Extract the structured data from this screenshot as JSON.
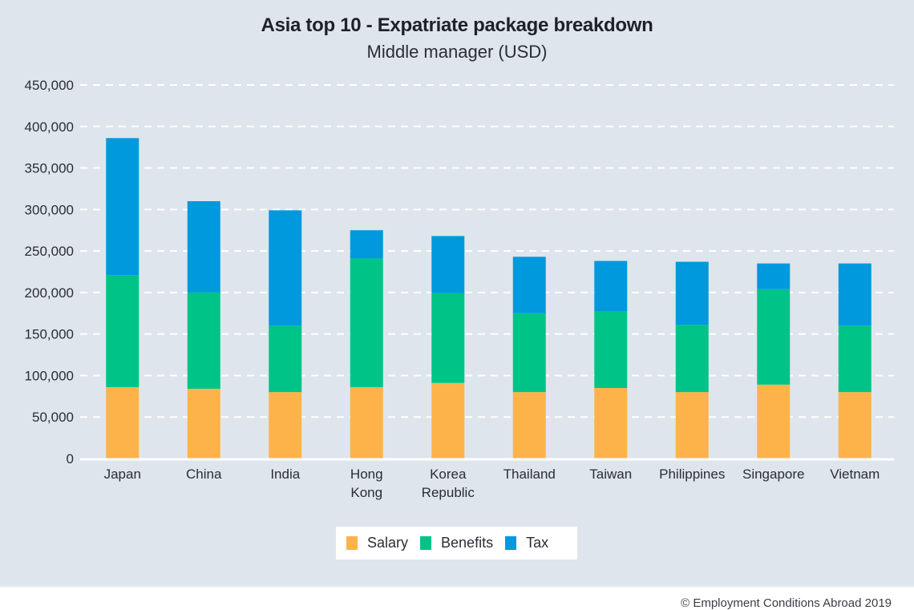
{
  "chart_data": {
    "type": "bar",
    "stacked": true,
    "title": "Asia top 10 - Expatriate package breakdown",
    "subtitle": "Middle manager (USD)",
    "xlabel": "",
    "ylabel": "",
    "ylim": [
      0,
      450000
    ],
    "yticks": [
      0,
      50000,
      100000,
      150000,
      200000,
      250000,
      300000,
      350000,
      400000,
      450000
    ],
    "ytick_labels": [
      "0",
      "50,000",
      "100,000",
      "150,000",
      "200,000",
      "250,000",
      "300,000",
      "350,000",
      "400,000",
      "450,000"
    ],
    "grid": true,
    "legend_position": "bottom",
    "categories": [
      "Japan",
      "China",
      "India",
      "Hong Kong",
      "Korea Republic",
      "Thailand",
      "Taiwan",
      "Philippines",
      "Singapore",
      "Vietnam"
    ],
    "category_lines": [
      [
        "Japan"
      ],
      [
        "China"
      ],
      [
        "India"
      ],
      [
        "Hong",
        "Kong"
      ],
      [
        "Korea",
        "Republic"
      ],
      [
        "Thailand"
      ],
      [
        "Taiwan"
      ],
      [
        "Philippines"
      ],
      [
        "Singapore"
      ],
      [
        "Vietnam"
      ]
    ],
    "series": [
      {
        "name": "Salary",
        "color": "#fdb34a",
        "values": [
          86000,
          84000,
          80000,
          86000,
          91000,
          80000,
          85000,
          80000,
          89000,
          80000
        ]
      },
      {
        "name": "Benefits",
        "color": "#00c487",
        "values": [
          135000,
          116000,
          80000,
          155000,
          108000,
          95000,
          92000,
          81000,
          115000,
          80000
        ]
      },
      {
        "name": "Tax",
        "color": "#0099dd",
        "values": [
          165000,
          110000,
          139000,
          34000,
          69000,
          68000,
          61000,
          76000,
          31000,
          75000
        ]
      }
    ]
  },
  "legend": {
    "items": [
      {
        "label": "Salary",
        "color": "#fdb34a"
      },
      {
        "label": "Benefits",
        "color": "#00c487"
      },
      {
        "label": "Tax",
        "color": "#0099dd"
      }
    ]
  },
  "footer": {
    "copyright": "© Employment Conditions Abroad 2019"
  }
}
